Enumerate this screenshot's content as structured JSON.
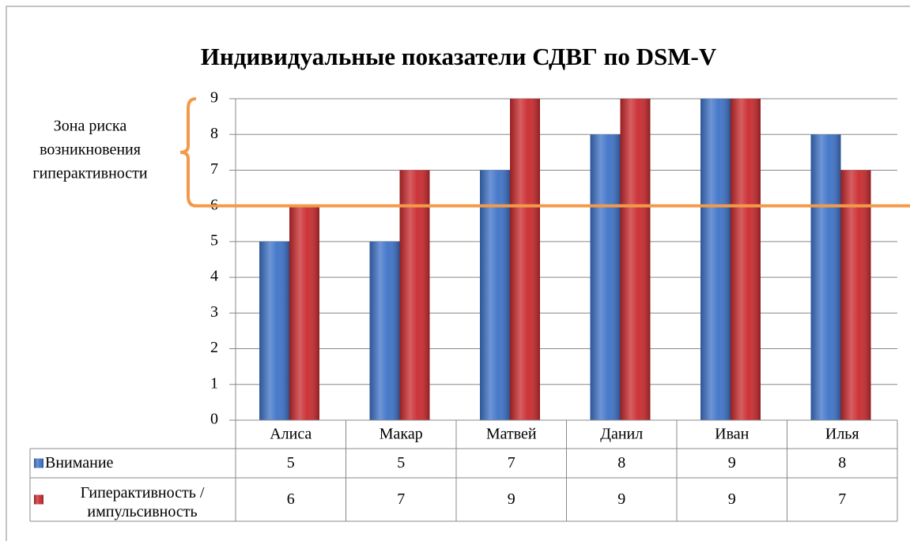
{
  "chart_data": {
    "type": "bar",
    "title": "Индивидуальные показатели СДВГ по DSM-V",
    "categories": [
      "Алиса",
      "Макар",
      "Матвей",
      "Данил",
      "Иван",
      "Илья"
    ],
    "series": [
      {
        "name": "Внимание",
        "color": "#3d72c8",
        "values": [
          5,
          5,
          7,
          8,
          9,
          8
        ]
      },
      {
        "name": "Гиперактивность / импульсивность",
        "color": "#c9292d",
        "values": [
          6,
          7,
          9,
          9,
          9,
          7
        ]
      }
    ],
    "ylim": [
      0,
      9
    ],
    "yticks": [
      0,
      1,
      2,
      3,
      4,
      5,
      6,
      7,
      8,
      9
    ],
    "grid": true,
    "threshold": 6,
    "threshold_color": "#f39a4a",
    "annotation": [
      "Зона риска",
      "возникновения",
      "гиперактивности"
    ],
    "data_table": true
  }
}
